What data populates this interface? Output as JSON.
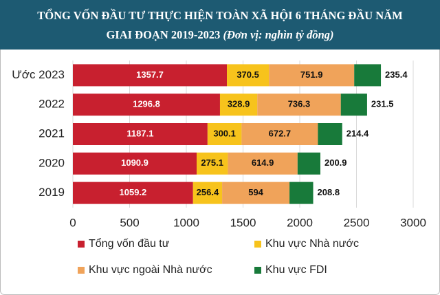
{
  "chart_data": {
    "type": "stacked-bar-horizontal",
    "title": [
      "TỔNG VỐN ĐẦU TƯ THỰC HIỆN TOÀN XÃ HỘI 6 THÁNG ĐẦU NĂM",
      "GIAI ĐOẠN 2019-2023"
    ],
    "unit_note": "(Đơn vị: nghìn tỷ đồng)",
    "categories": [
      "Ước 2023",
      "2022",
      "2021",
      "2020",
      "2019"
    ],
    "series": [
      {
        "name": "Tổng vốn đầu tư",
        "color": "#c8202f",
        "values": [
          1357.7,
          1296.8,
          1187.1,
          1090.9,
          1059.2
        ]
      },
      {
        "name": "Khu vực Nhà nước",
        "color": "#f7c31c",
        "values": [
          370.5,
          328.9,
          300.1,
          275.1,
          256.4
        ]
      },
      {
        "name": "Khu vực ngoài Nhà nước",
        "color": "#f0a35a",
        "values": [
          751.9,
          736.3,
          672.7,
          614.9,
          594
        ]
      },
      {
        "name": "Khu vực FDI",
        "color": "#187a3a",
        "values": [
          235.4,
          231.5,
          214.4,
          200.9,
          208.8
        ]
      }
    ],
    "xlim": [
      0,
      3000
    ],
    "xticks": [
      0,
      500,
      1000,
      1500,
      2000,
      2500,
      3000
    ],
    "grid": true
  }
}
